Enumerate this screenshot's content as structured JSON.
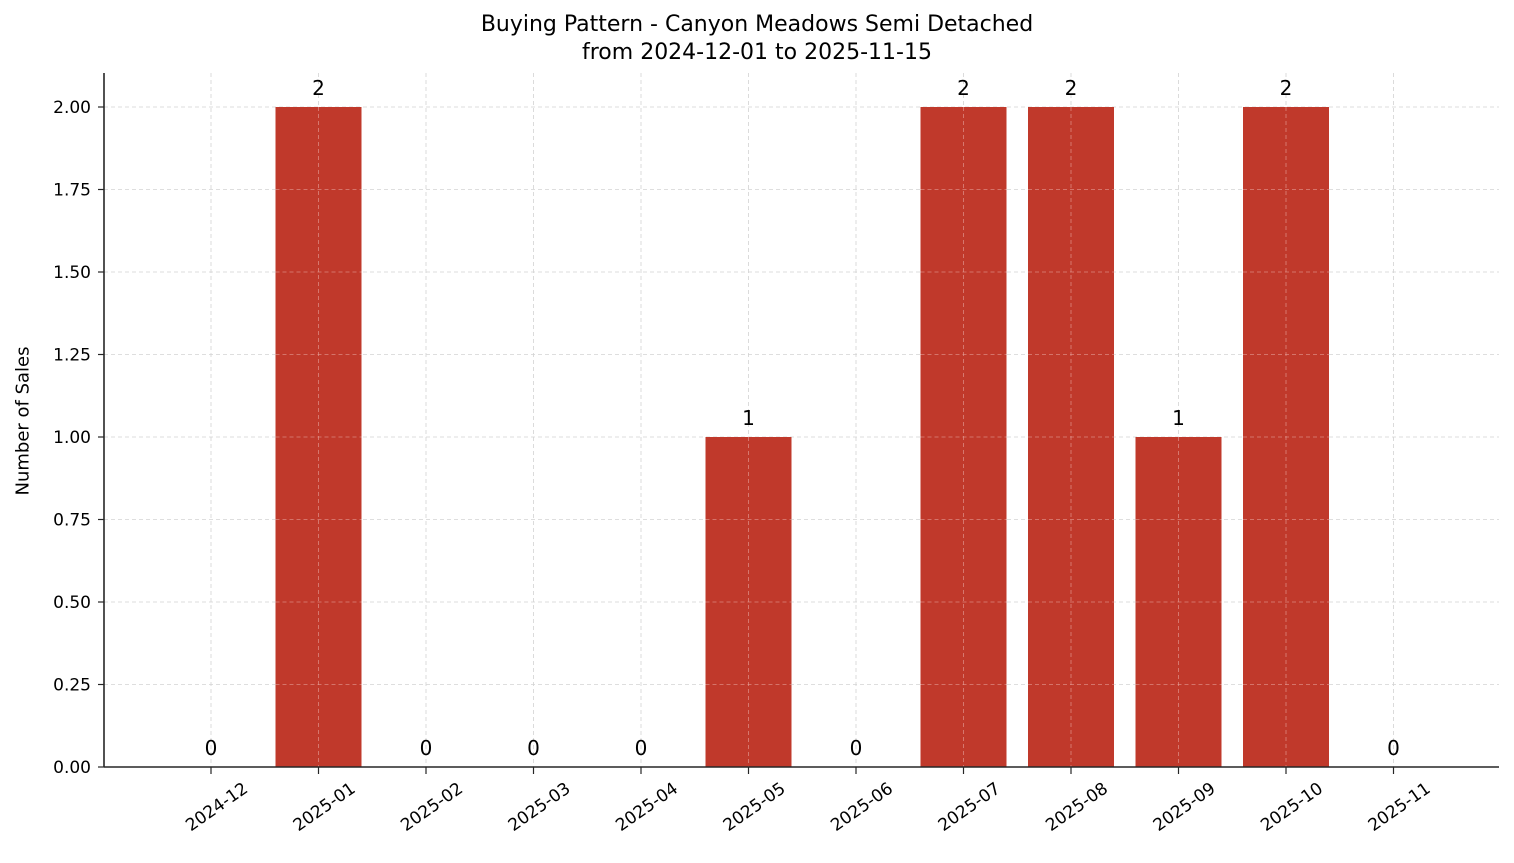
{
  "title": {
    "line1": "Buying Pattern - Canyon Meadows Semi Detached",
    "line2": "from 2024-12-01 to 2025-11-15"
  },
  "axes": {
    "ylabel": "Number of Sales",
    "xlabel": ""
  },
  "colors": {
    "bar": "#c0392b",
    "grid": "#d3d3d3",
    "axis": "#262626"
  },
  "chart_data": {
    "type": "bar",
    "title": "Buying Pattern - Canyon Meadows Semi Detached\nfrom 2024-12-01 to 2025-11-15",
    "xlabel": "",
    "ylabel": "Number of Sales",
    "categories": [
      "2024-12",
      "2025-01",
      "2025-02",
      "2025-03",
      "2025-04",
      "2025-05",
      "2025-06",
      "2025-07",
      "2025-08",
      "2025-09",
      "2025-10",
      "2025-11"
    ],
    "values": [
      0,
      2,
      0,
      0,
      0,
      1,
      0,
      2,
      2,
      1,
      2,
      0
    ],
    "data_labels": [
      "0",
      "2",
      "0",
      "0",
      "0",
      "1",
      "0",
      "2",
      "2",
      "1",
      "2",
      "0"
    ],
    "yticks": [
      "0.00",
      "0.25",
      "0.50",
      "0.75",
      "1.00",
      "1.25",
      "1.50",
      "1.75",
      "2.00"
    ],
    "ylim": [
      0,
      2.1
    ],
    "grid": true,
    "grid_style": "dashed",
    "legend": null,
    "xtick_rotation": 35,
    "bar_color": "#c0392b"
  }
}
